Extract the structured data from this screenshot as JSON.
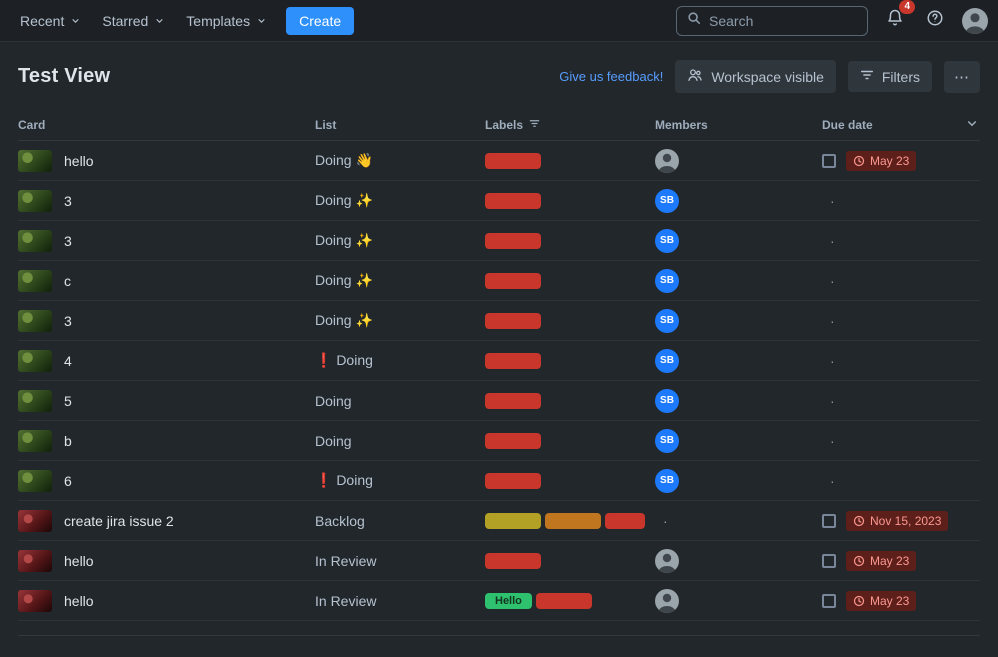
{
  "nav": {
    "menus": [
      {
        "label": "Recent"
      },
      {
        "label": "Starred"
      },
      {
        "label": "Templates"
      }
    ],
    "create_label": "Create",
    "search_placeholder": "Search",
    "notification_badge": "4"
  },
  "header": {
    "title": "Test View",
    "feedback_link": "Give us feedback!",
    "workspace_button_label": "Workspace visible",
    "filters_button_label": "Filters",
    "more_label": "⋯"
  },
  "table": {
    "columns": [
      {
        "label": "Card"
      },
      {
        "label": "List"
      },
      {
        "label": "Labels"
      },
      {
        "label": "Members"
      },
      {
        "label": "Due date"
      }
    ],
    "rows": [
      {
        "card": "hello",
        "thumb": "green",
        "list": "Doing 👋",
        "labels": [
          {
            "color": "#C9372C"
          }
        ],
        "member": {
          "type": "photo"
        },
        "due": {
          "text": "May 23"
        }
      },
      {
        "card": "3",
        "thumb": "green",
        "list": "Doing ✨",
        "labels": [
          {
            "color": "#C9372C"
          }
        ],
        "member": {
          "type": "initials",
          "text": "SB"
        },
        "due": null
      },
      {
        "card": "3",
        "thumb": "green",
        "list": "Doing ✨",
        "labels": [
          {
            "color": "#C9372C"
          }
        ],
        "member": {
          "type": "initials",
          "text": "SB"
        },
        "due": null
      },
      {
        "card": "c",
        "thumb": "green",
        "list": "Doing ✨",
        "labels": [
          {
            "color": "#C9372C"
          }
        ],
        "member": {
          "type": "initials",
          "text": "SB"
        },
        "due": null
      },
      {
        "card": "3",
        "thumb": "green",
        "list": "Doing ✨",
        "labels": [
          {
            "color": "#C9372C"
          }
        ],
        "member": {
          "type": "initials",
          "text": "SB"
        },
        "due": null
      },
      {
        "card": "4",
        "thumb": "green",
        "list": "❗ Doing",
        "labels": [
          {
            "color": "#C9372C"
          }
        ],
        "member": {
          "type": "initials",
          "text": "SB"
        },
        "due": null
      },
      {
        "card": "5",
        "thumb": "green",
        "list": "Doing",
        "labels": [
          {
            "color": "#C9372C"
          }
        ],
        "member": {
          "type": "initials",
          "text": "SB"
        },
        "due": null
      },
      {
        "card": "b",
        "thumb": "green",
        "list": "Doing",
        "labels": [
          {
            "color": "#C9372C"
          }
        ],
        "member": {
          "type": "initials",
          "text": "SB"
        },
        "due": null
      },
      {
        "card": "6",
        "thumb": "green",
        "list": "❗ Doing",
        "labels": [
          {
            "color": "#C9372C"
          }
        ],
        "member": {
          "type": "initials",
          "text": "SB"
        },
        "due": null
      },
      {
        "card": "create jira issue 2",
        "thumb": "red",
        "list": "Backlog",
        "labels": [
          {
            "color": "#B3A125"
          },
          {
            "color": "#C0761F"
          },
          {
            "color": "#C9372C",
            "width": 40
          }
        ],
        "member": {
          "type": "none"
        },
        "due": {
          "text": "Nov 15, 2023"
        }
      },
      {
        "card": "hello",
        "thumb": "red",
        "list": "In Review",
        "labels": [
          {
            "color": "#C9372C"
          }
        ],
        "member": {
          "type": "photo"
        },
        "due": {
          "text": "May 23"
        }
      },
      {
        "card": "hello",
        "thumb": "red",
        "list": "In Review",
        "labels": [
          {
            "color": "#2EC26E",
            "text": "Hello",
            "text_color": "#14341F"
          },
          {
            "color": "#C9372C"
          }
        ],
        "member": {
          "type": "photo"
        },
        "due": {
          "text": "May 23"
        }
      }
    ]
  },
  "colors": {
    "accent_blue": "#2E90FA",
    "link_blue": "#579DFF",
    "label_red": "#C9372C",
    "label_yellow": "#B3A125",
    "label_orange": "#C0761F",
    "label_green": "#2EC26E",
    "member_blue": "#1D7AFC",
    "due_badge_bg": "#5D1F1A",
    "due_badge_text": "#FD9891"
  }
}
